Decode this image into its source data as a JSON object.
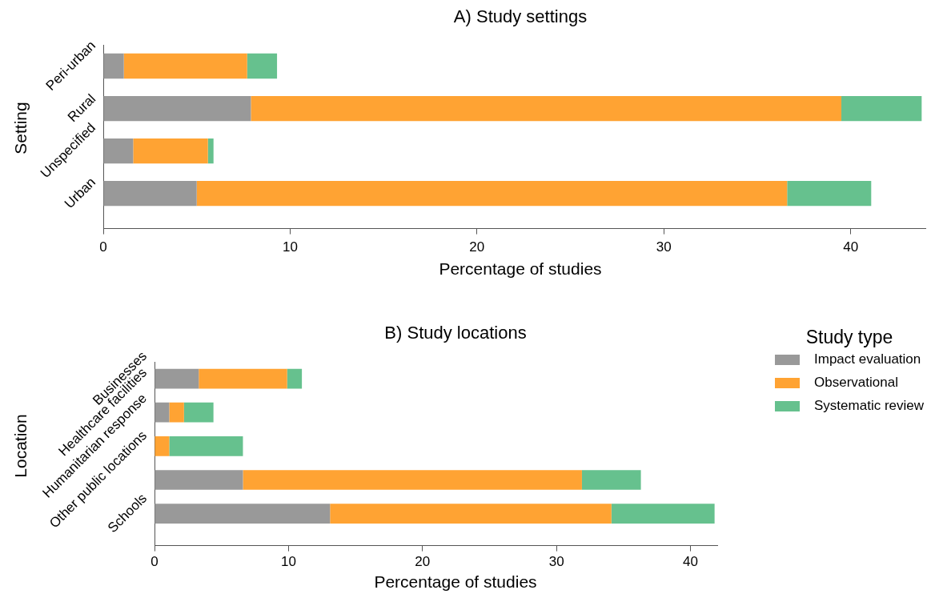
{
  "chart_data": [
    {
      "type": "bar",
      "orientation": "horizontal",
      "stacked": true,
      "title": "A) Study settings",
      "xlabel": "Percentage of studies",
      "ylabel": "Setting",
      "categories": [
        "Peri-urban",
        "Rural",
        "Unspecified",
        "Urban"
      ],
      "series": [
        {
          "color": "#999999",
          "values": [
            1.1,
            7.9,
            1.6,
            5.0
          ]
        },
        {
          "color": "#ffa333",
          "values": [
            6.6,
            31.6,
            4.0,
            31.6
          ]
        },
        {
          "color": "#66c18e",
          "values": [
            1.6,
            4.3,
            0.3,
            4.5
          ]
        }
      ],
      "xlim": [
        0,
        44
      ],
      "xticks": [
        0,
        10,
        20,
        30,
        40
      ]
    },
    {
      "type": "bar",
      "orientation": "horizontal",
      "stacked": true,
      "title": "B) Study locations",
      "xlabel": "Percentage of studies",
      "ylabel": "Location",
      "categories": [
        "Businesses",
        "Healthcare facilities",
        "Humanitarian response",
        "Other public locations",
        "Schools"
      ],
      "series": [
        {
          "name": "Impact evaluation",
          "color": "#999999",
          "values": [
            3.3,
            1.1,
            0,
            6.6,
            13.1
          ]
        },
        {
          "name": "Observational",
          "color": "#ffa333",
          "values": [
            6.6,
            1.1,
            1.1,
            25.3,
            21.0
          ]
        },
        {
          "name": "Systematic review",
          "color": "#66c18e",
          "values": [
            1.1,
            2.2,
            5.5,
            4.4,
            7.7
          ]
        }
      ],
      "xlim": [
        0,
        42
      ],
      "xticks": [
        0,
        10,
        20,
        30,
        40
      ],
      "legend": "right",
      "legend_title": "Study type"
    }
  ]
}
